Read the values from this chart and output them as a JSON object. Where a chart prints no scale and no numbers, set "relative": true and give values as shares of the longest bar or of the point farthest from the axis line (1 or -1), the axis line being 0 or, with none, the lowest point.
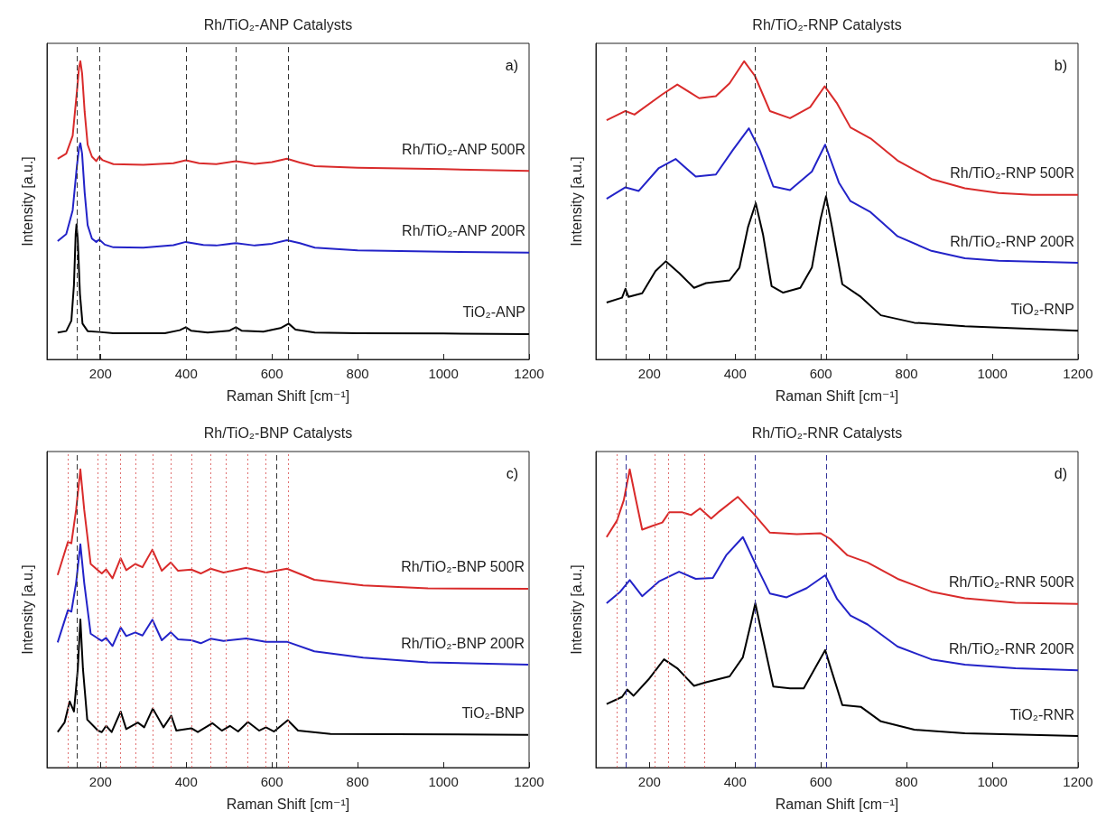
{
  "chart_data": [
    {
      "type": "line",
      "title": "Rh/TiO₂-ANP Catalysts",
      "xlabel": "Raman Shift [cm⁻¹]",
      "ylabel": "Intensity [a.u.]",
      "annotations": [
        "a)"
      ],
      "relative": true,
      "marker": "none",
      "legend": false,
      "xlim": [
        75,
        1200
      ],
      "xticks": [
        200,
        400,
        600,
        800,
        1000,
        1200
      ],
      "ref_lines": [
        {
          "axis": "x",
          "value": 144,
          "color": "#333333",
          "line_style": "dashed"
        },
        {
          "axis": "x",
          "value": 197,
          "color": "#333333",
          "line_style": "dashed"
        },
        {
          "axis": "x",
          "value": 399,
          "color": "#333333",
          "line_style": "dashed"
        },
        {
          "axis": "x",
          "value": 516,
          "color": "#333333",
          "line_style": "dashed"
        },
        {
          "axis": "x",
          "value": 639,
          "color": "#333333",
          "line_style": "dashed"
        }
      ],
      "series": [
        {
          "name": "Rh/TiO₂-ANP 500R",
          "color": "#d92b2b",
          "x": [
            100,
            120,
            135,
            145,
            150,
            153,
            157,
            163,
            170,
            180,
            190,
            197,
            205,
            230,
            300,
            370,
            399,
            430,
            470,
            516,
            560,
            600,
            635,
            665,
            700,
            800,
            1000,
            1200
          ],
          "values": [
            0.673,
            0.69,
            0.75,
            0.9,
            0.98,
            1.0,
            0.96,
            0.83,
            0.72,
            0.68,
            0.665,
            0.68,
            0.668,
            0.655,
            0.653,
            0.658,
            0.668,
            0.658,
            0.655,
            0.665,
            0.656,
            0.662,
            0.673,
            0.66,
            0.648,
            0.643,
            0.638,
            0.632
          ]
        },
        {
          "name": "Rh/TiO₂-ANP 200R",
          "color": "#2323c8",
          "x": [
            100,
            120,
            135,
            145,
            150,
            153,
            157,
            163,
            170,
            180,
            190,
            197,
            210,
            230,
            300,
            370,
            399,
            440,
            470,
            516,
            560,
            600,
            635,
            665,
            700,
            800,
            1000,
            1200
          ],
          "values": [
            0.397,
            0.42,
            0.5,
            0.65,
            0.71,
            0.725,
            0.69,
            0.56,
            0.45,
            0.405,
            0.394,
            0.402,
            0.385,
            0.376,
            0.375,
            0.383,
            0.394,
            0.384,
            0.382,
            0.39,
            0.382,
            0.388,
            0.4,
            0.39,
            0.375,
            0.366,
            0.361,
            0.358
          ]
        },
        {
          "name": "TiO₂-ANP",
          "color": "#000000",
          "x": [
            100,
            120,
            132,
            138,
            142,
            144,
            147,
            152,
            158,
            170,
            197,
            230,
            350,
            385,
            399,
            412,
            450,
            500,
            516,
            530,
            580,
            620,
            639,
            655,
            700,
            800,
            1000,
            1200
          ],
          "values": [
            0.09,
            0.095,
            0.13,
            0.25,
            0.42,
            0.453,
            0.4,
            0.22,
            0.12,
            0.095,
            0.092,
            0.088,
            0.088,
            0.098,
            0.108,
            0.096,
            0.09,
            0.096,
            0.108,
            0.096,
            0.093,
            0.105,
            0.12,
            0.1,
            0.09,
            0.088,
            0.087,
            0.085
          ]
        }
      ]
    },
    {
      "type": "line",
      "title": "Rh/TiO₂-RNP Catalysts",
      "xlabel": "Raman Shift [cm⁻¹]",
      "ylabel": "Intensity [a.u.]",
      "annotations": [
        "b)"
      ],
      "relative": true,
      "marker": "none",
      "legend": false,
      "xlim": [
        75,
        1200
      ],
      "xticks": [
        200,
        400,
        600,
        800,
        1000,
        1200
      ],
      "ref_lines": [
        {
          "axis": "x",
          "value": 144,
          "color": "#333333",
          "line_style": "dashed"
        },
        {
          "axis": "x",
          "value": 240,
          "color": "#333333",
          "line_style": "dashed"
        },
        {
          "axis": "x",
          "value": 447,
          "color": "#333333",
          "line_style": "dashed"
        },
        {
          "axis": "x",
          "value": 612,
          "color": "#333333",
          "line_style": "dashed"
        }
      ],
      "series": [
        {
          "name": "Rh/TiO₂-RNP 500R",
          "color": "#d92b2b",
          "x": [
            100,
            144,
            165,
            230,
            265,
            316,
            355,
            387,
            421,
            446,
            481,
            528,
            575,
            609,
            638,
            669,
            716,
            779,
            858,
            936,
            1015,
            1093,
            1200
          ],
          "values": [
            0.802,
            0.833,
            0.821,
            0.889,
            0.922,
            0.876,
            0.883,
            0.926,
            1.0,
            0.951,
            0.833,
            0.809,
            0.846,
            0.916,
            0.858,
            0.778,
            0.741,
            0.667,
            0.605,
            0.574,
            0.558,
            0.552,
            0.552
          ]
        },
        {
          "name": "Rh/TiO₂-RNP 200R",
          "color": "#2323c8",
          "x": [
            100,
            144,
            175,
            222,
            261,
            308,
            355,
            395,
            432,
            457,
            489,
            528,
            579,
            610,
            642,
            669,
            716,
            779,
            858,
            936,
            1015,
            1200
          ],
          "values": [
            0.539,
            0.577,
            0.565,
            0.642,
            0.672,
            0.613,
            0.62,
            0.703,
            0.775,
            0.703,
            0.58,
            0.568,
            0.63,
            0.72,
            0.593,
            0.531,
            0.494,
            0.413,
            0.364,
            0.339,
            0.331,
            0.324
          ]
        },
        {
          "name": "TiO₂-RNP",
          "color": "#000000",
          "x": [
            100,
            136,
            144,
            151,
            183,
            214,
            238,
            269,
            304,
            332,
            387,
            410,
            430,
            448,
            465,
            485,
            512,
            552,
            579,
            599,
            612,
            626,
            650,
            693,
            740,
            818,
            936,
            1200
          ],
          "values": [
            0.191,
            0.207,
            0.237,
            0.21,
            0.222,
            0.296,
            0.329,
            0.29,
            0.24,
            0.256,
            0.265,
            0.308,
            0.444,
            0.524,
            0.419,
            0.246,
            0.224,
            0.24,
            0.308,
            0.469,
            0.547,
            0.444,
            0.252,
            0.21,
            0.148,
            0.123,
            0.111,
            0.096
          ]
        }
      ]
    },
    {
      "type": "line",
      "title": "Rh/TiO₂-BNP Catalysts",
      "xlabel": "Raman Shift [cm⁻¹]",
      "ylabel": "Intensity [a.u.]",
      "annotations": [
        "c)"
      ],
      "relative": true,
      "marker": "none",
      "legend": false,
      "xlim": [
        75,
        1200
      ],
      "xticks": [
        200,
        400,
        600,
        800,
        1000,
        1200
      ],
      "ref_lines": [
        {
          "axis": "x",
          "value": 124,
          "color": "#e07070",
          "line_style": "dotted"
        },
        {
          "axis": "x",
          "value": 194,
          "color": "#e07070",
          "line_style": "dotted"
        },
        {
          "axis": "x",
          "value": 213,
          "color": "#e07070",
          "line_style": "dotted"
        },
        {
          "axis": "x",
          "value": 247,
          "color": "#e07070",
          "line_style": "dotted"
        },
        {
          "axis": "x",
          "value": 281,
          "color": "#e07070",
          "line_style": "dotted"
        },
        {
          "axis": "x",
          "value": 321,
          "color": "#e07070",
          "line_style": "dotted"
        },
        {
          "axis": "x",
          "value": 364,
          "color": "#e07070",
          "line_style": "dotted"
        },
        {
          "axis": "x",
          "value": 412,
          "color": "#e07070",
          "line_style": "dotted"
        },
        {
          "axis": "x",
          "value": 457,
          "color": "#e07070",
          "line_style": "dotted"
        },
        {
          "axis": "x",
          "value": 493,
          "color": "#e07070",
          "line_style": "dotted"
        },
        {
          "axis": "x",
          "value": 544,
          "color": "#e07070",
          "line_style": "dotted"
        },
        {
          "axis": "x",
          "value": 586,
          "color": "#e07070",
          "line_style": "dotted"
        },
        {
          "axis": "x",
          "value": 637,
          "color": "#e07070",
          "line_style": "dotted"
        },
        {
          "axis": "x",
          "value": 144,
          "color": "#333333",
          "line_style": "dashed"
        },
        {
          "axis": "x",
          "value": 610,
          "color": "#333333",
          "line_style": "dashed"
        }
      ],
      "series": [
        {
          "name": "Rh/TiO₂-BNP 500R",
          "color": "#d92b2b",
          "x": [
            100,
            124,
            132,
            143,
            153,
            162,
            177,
            194,
            203,
            213,
            228,
            247,
            260,
            281,
            298,
            321,
            343,
            364,
            381,
            412,
            434,
            457,
            487,
            540,
            586,
            635,
            699,
            813,
            964,
            1198
          ],
          "values": [
            0.646,
            0.757,
            0.752,
            0.864,
            1.0,
            0.864,
            0.683,
            0.662,
            0.651,
            0.665,
            0.635,
            0.702,
            0.662,
            0.683,
            0.672,
            0.731,
            0.66,
            0.688,
            0.66,
            0.664,
            0.651,
            0.667,
            0.654,
            0.67,
            0.654,
            0.667,
            0.63,
            0.611,
            0.601,
            0.6
          ]
        },
        {
          "name": "Rh/TiO₂-BNP 200R",
          "color": "#2323c8",
          "x": [
            100,
            124,
            132,
            143,
            153,
            162,
            177,
            194,
            203,
            213,
            228,
            247,
            260,
            281,
            298,
            321,
            343,
            364,
            381,
            412,
            434,
            457,
            487,
            540,
            586,
            635,
            699,
            813,
            964,
            1198
          ],
          "values": [
            0.42,
            0.528,
            0.523,
            0.619,
            0.749,
            0.619,
            0.449,
            0.433,
            0.425,
            0.435,
            0.408,
            0.47,
            0.441,
            0.453,
            0.443,
            0.496,
            0.427,
            0.454,
            0.43,
            0.427,
            0.417,
            0.432,
            0.425,
            0.433,
            0.422,
            0.422,
            0.39,
            0.369,
            0.353,
            0.345
          ]
        },
        {
          "name": "TiO₂-BNP",
          "color": "#000000",
          "x": [
            100,
            116,
            128,
            138,
            147,
            153,
            159,
            169,
            194,
            203,
            213,
            226,
            247,
            260,
            287,
            302,
            322,
            347,
            365,
            377,
            412,
            427,
            461,
            483,
            502,
            521,
            544,
            570,
            586,
            605,
            637,
            661,
            737,
            1198
          ],
          "values": [
            0.119,
            0.151,
            0.222,
            0.188,
            0.331,
            0.497,
            0.331,
            0.161,
            0.124,
            0.119,
            0.14,
            0.119,
            0.188,
            0.129,
            0.151,
            0.135,
            0.198,
            0.135,
            0.174,
            0.124,
            0.132,
            0.119,
            0.149,
            0.124,
            0.14,
            0.121,
            0.153,
            0.124,
            0.135,
            0.121,
            0.159,
            0.124,
            0.113,
            0.11
          ]
        }
      ]
    },
    {
      "type": "line",
      "title": "Rh/TiO₂-RNR Catalysts",
      "xlabel": "Raman Shift [cm⁻¹]",
      "ylabel": "Intensity [a.u.]",
      "annotations": [
        "d)"
      ],
      "relative": true,
      "marker": "none",
      "legend": false,
      "xlim": [
        75,
        1200
      ],
      "xticks": [
        200,
        400,
        600,
        800,
        1000,
        1200
      ],
      "ref_lines": [
        {
          "axis": "x",
          "value": 124,
          "color": "#e07070",
          "line_style": "dotted"
        },
        {
          "axis": "x",
          "value": 213,
          "color": "#e07070",
          "line_style": "dotted"
        },
        {
          "axis": "x",
          "value": 244,
          "color": "#e07070",
          "line_style": "dotted"
        },
        {
          "axis": "x",
          "value": 283,
          "color": "#e07070",
          "line_style": "dotted"
        },
        {
          "axis": "x",
          "value": 328,
          "color": "#e07070",
          "line_style": "dotted"
        },
        {
          "axis": "x",
          "value": 144,
          "color": "#333399",
          "line_style": "dashed"
        },
        {
          "axis": "x",
          "value": 447,
          "color": "#333399",
          "line_style": "dashed"
        },
        {
          "axis": "x",
          "value": 612,
          "color": "#333399",
          "line_style": "dashed"
        }
      ],
      "series": [
        {
          "name": "Rh/TiO₂-RNR 500R",
          "color": "#d92b2b",
          "x": [
            100,
            124,
            140,
            154,
            167,
            183,
            206,
            230,
            246,
            277,
            297,
            318,
            344,
            363,
            406,
            442,
            481,
            544,
            599,
            622,
            662,
            709,
            779,
            858,
            936,
            1054,
            1200
          ],
          "values": [
            0.773,
            0.828,
            0.896,
            1.0,
            0.908,
            0.798,
            0.81,
            0.822,
            0.856,
            0.856,
            0.847,
            0.869,
            0.835,
            0.859,
            0.908,
            0.853,
            0.788,
            0.783,
            0.786,
            0.767,
            0.712,
            0.688,
            0.633,
            0.59,
            0.568,
            0.553,
            0.549
          ]
        },
        {
          "name": "Rh/TiO₂-RNR 200R",
          "color": "#2323c8",
          "x": [
            100,
            132,
            154,
            183,
            222,
            269,
            308,
            348,
            379,
            418,
            450,
            481,
            520,
            567,
            610,
            638,
            669,
            709,
            779,
            858,
            936,
            1054,
            1200
          ],
          "values": [
            0.551,
            0.59,
            0.629,
            0.575,
            0.624,
            0.657,
            0.633,
            0.636,
            0.712,
            0.773,
            0.675,
            0.584,
            0.571,
            0.602,
            0.645,
            0.565,
            0.51,
            0.48,
            0.406,
            0.363,
            0.345,
            0.333,
            0.326
          ]
        },
        {
          "name": "TiO₂-RNR",
          "color": "#000000",
          "x": [
            100,
            136,
            148,
            163,
            198,
            234,
            265,
            304,
            332,
            387,
            418,
            436,
            447,
            465,
            489,
            528,
            560,
            591,
            610,
            626,
            650,
            693,
            740,
            818,
            936,
            1200
          ],
          "values": [
            0.213,
            0.237,
            0.262,
            0.241,
            0.296,
            0.363,
            0.333,
            0.274,
            0.286,
            0.306,
            0.37,
            0.48,
            0.551,
            0.431,
            0.272,
            0.266,
            0.266,
            0.345,
            0.394,
            0.32,
            0.21,
            0.204,
            0.155,
            0.127,
            0.115,
            0.106
          ]
        }
      ]
    }
  ]
}
